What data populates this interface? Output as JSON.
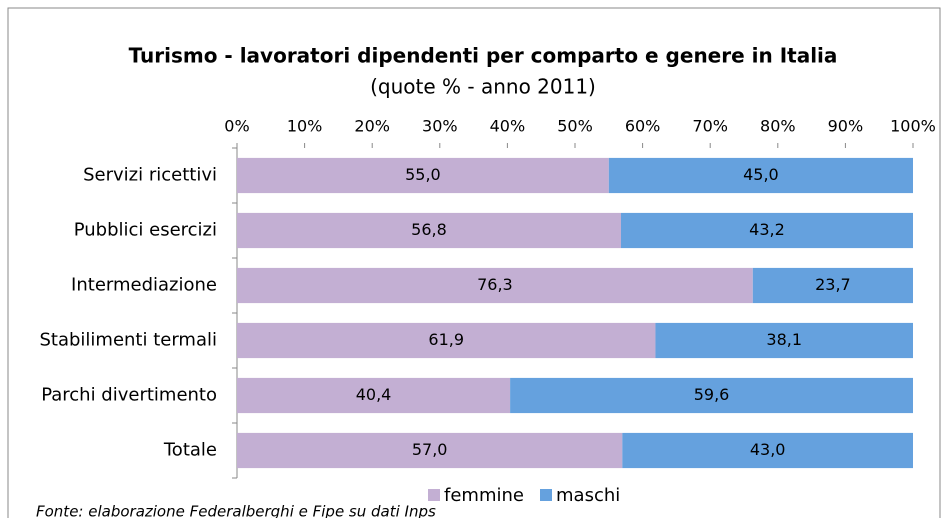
{
  "chart_data": {
    "type": "stacked-barh",
    "title": "Turismo - lavoratori dipendenti per comparto e genere in Italia",
    "subtitle": "(quote % - anno 2011)",
    "note": "Fonte: elaborazione Federalberghi e Fipe su dati Inps",
    "categories": [
      "Servizi ricettivi",
      "Pubblici esercizi",
      "Intermediazione",
      "Stabilimenti termali",
      "Parchi divertimento",
      "Totale"
    ],
    "series": [
      {
        "name": "femmine",
        "color": "#c3afd3",
        "values": [
          55.0,
          56.8,
          76.3,
          61.9,
          40.4,
          57.0
        ],
        "value_labels": [
          "55,0",
          "56,8",
          "76,3",
          "61,9",
          "40,4",
          "57,0"
        ]
      },
      {
        "name": "maschi",
        "color": "#65a1de",
        "values": [
          45.0,
          43.2,
          23.7,
          38.1,
          59.6,
          43.0
        ],
        "value_labels": [
          "45,0",
          "43,2",
          "23,7",
          "38,1",
          "59,6",
          "43,0"
        ]
      }
    ],
    "xlim": [
      0,
      100
    ],
    "xticks": [
      {
        "value": 0,
        "label": "0%"
      },
      {
        "value": 10,
        "label": "10%"
      },
      {
        "value": 20,
        "label": "20%"
      },
      {
        "value": 30,
        "label": "30%"
      },
      {
        "value": 40,
        "label": "40%"
      },
      {
        "value": 50,
        "label": "50%"
      },
      {
        "value": 60,
        "label": "60%"
      },
      {
        "value": 70,
        "label": "70%"
      },
      {
        "value": 80,
        "label": "80%"
      },
      {
        "value": 90,
        "label": "90%"
      },
      {
        "value": 100,
        "label": "100%"
      }
    ],
    "legend": "bottom"
  }
}
